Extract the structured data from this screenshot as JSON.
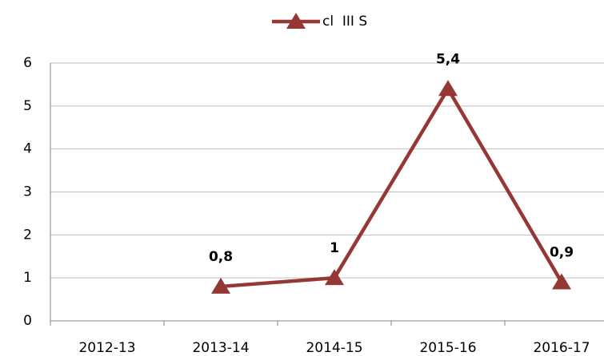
{
  "chart_data": {
    "type": "line",
    "categories": [
      "2012-13",
      "2013-14",
      "2014-15",
      "2015-16",
      "2016-17"
    ],
    "series": [
      {
        "name": "cl  III S",
        "color": "#953735",
        "values": [
          null,
          0.8,
          1,
          5.4,
          0.9
        ],
        "value_labels": [
          null,
          "0,8",
          "1",
          "5,4",
          "0,9"
        ]
      }
    ],
    "ylim": [
      0,
      6
    ],
    "yticks": [
      0,
      1,
      2,
      3,
      4,
      5,
      6
    ],
    "grid": true,
    "legend": "top"
  }
}
